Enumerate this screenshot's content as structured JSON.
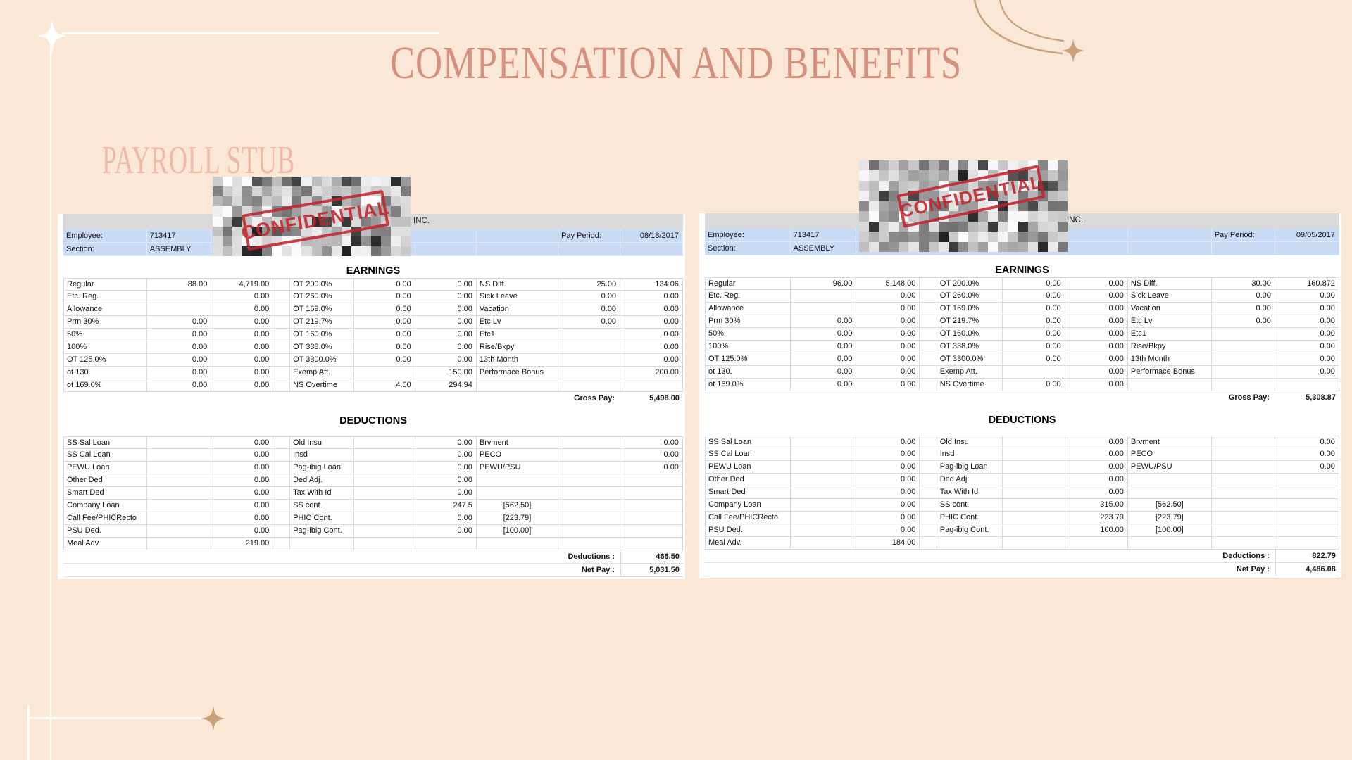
{
  "slide": {
    "title": "COMPENSATION AND BENEFITS",
    "subtitle": "PAYROLL STUB"
  },
  "stamp_label": "CONFIDENTIAL",
  "colors": {
    "background": "#fbe7d6",
    "title_text": "#d6917e",
    "subtitle_text": "#eeb9a6",
    "stamp_red": "#c5242c",
    "accent_tan": "#c9a17b",
    "header_gray": "#d9d9d9",
    "row_blue": "#c9daf5"
  },
  "stubs": [
    {
      "company_suffix": "INC.",
      "employee_label": "Employee:",
      "employee_id": "713417",
      "employee_name_visible": "(",
      "pay_period_label": "Pay Period:",
      "pay_period": "08/18/2017",
      "section_label": "Section:",
      "section": "ASSEMBLY",
      "earnings_title": "EARNINGS",
      "earnings_rows": [
        [
          "Regular",
          "88.00",
          "4,719.00",
          "OT 200.0%",
          "0.00",
          "0.00",
          "NS Diff.",
          "25.00",
          "134.06"
        ],
        [
          "Etc. Reg.",
          "",
          "0.00",
          "OT 260.0%",
          "0.00",
          "0.00",
          "Sick Leave",
          "0.00",
          "0.00"
        ],
        [
          "Allowance",
          "",
          "0.00",
          "OT 169.0%",
          "0.00",
          "0.00",
          "Vacation",
          "0.00",
          "0.00"
        ],
        [
          "Prm 30%",
          "0.00",
          "0.00",
          "OT 219.7%",
          "0.00",
          "0.00",
          "Etc Lv",
          "0.00",
          "0.00"
        ],
        [
          "50%",
          "0.00",
          "0.00",
          "OT 160.0%",
          "0.00",
          "0.00",
          "Etc1",
          "",
          "0.00"
        ],
        [
          "100%",
          "0.00",
          "0.00",
          "OT 338.0%",
          "0.00",
          "0.00",
          "Rise/Bkpy",
          "",
          "0.00"
        ],
        [
          "OT 125.0%",
          "0.00",
          "0.00",
          "OT 3300.0%",
          "0.00",
          "0.00",
          "13th Month",
          "",
          "0.00"
        ],
        [
          "ot 130.",
          "0.00",
          "0.00",
          "Exemp Att.",
          "",
          "150.00",
          "Performace Bonus",
          "",
          "200.00"
        ],
        [
          "ot 169.0%",
          "0.00",
          "0.00",
          "NS Overtime",
          "4.00",
          "294.94",
          "",
          "",
          ""
        ]
      ],
      "gross_pay_label": "Gross Pay:",
      "gross_pay": "5,498.00",
      "deductions_title": "DEDUCTIONS",
      "deduction_rows": [
        [
          "SS Sal Loan",
          "0.00",
          "Old Insu",
          "0.00",
          "",
          "Brvment",
          "0.00"
        ],
        [
          "SS Cal Loan",
          "0.00",
          "Insd",
          "0.00",
          "",
          "PECO",
          "0.00"
        ],
        [
          "PEWU Loan",
          "0.00",
          "Pag-ibig Loan",
          "0.00",
          "",
          "PEWU/PSU",
          "0.00"
        ],
        [
          "Other Ded",
          "0.00",
          "Ded Adj.",
          "0.00",
          "",
          "",
          ""
        ],
        [
          "Smart Ded",
          "0.00",
          "Tax With Id",
          "0.00",
          "",
          "",
          ""
        ],
        [
          "Company Loan",
          "0.00",
          "SS cont.",
          "247.5",
          "[562.50]",
          "",
          ""
        ],
        [
          "Call Fee/PHICRecto",
          "0.00",
          "PHIC Cont.",
          "0.00",
          "[223.79]",
          "",
          ""
        ],
        [
          "PSU Ded.",
          "0.00",
          "Pag-ibig Cont.",
          "0.00",
          "[100.00]",
          "",
          ""
        ],
        [
          "Meal Adv.",
          "219.00",
          "",
          "",
          "",
          "",
          ""
        ]
      ],
      "deductions_total_label": "Deductions :",
      "deductions_total": "466.50",
      "net_pay_label": "Net Pay :",
      "net_pay": "5,031.50"
    },
    {
      "company_suffix": "INC.",
      "employee_label": "Employee:",
      "employee_id": "713417",
      "employee_name_visible": "CA",
      "pay_period_label": "Pay Period:",
      "pay_period": "09/05/2017",
      "section_label": "Section:",
      "section": "ASSEMBLY",
      "earnings_title": "EARNINGS",
      "earnings_rows": [
        [
          "Regular",
          "96.00",
          "5,148.00",
          "OT 200.0%",
          "0.00",
          "0.00",
          "NS Diff.",
          "30.00",
          "160.872"
        ],
        [
          "Etc. Reg.",
          "",
          "0.00",
          "OT 260.0%",
          "0.00",
          "0.00",
          "Sick Leave",
          "0.00",
          "0.00"
        ],
        [
          "Allowance",
          "",
          "0.00",
          "OT 169.0%",
          "0.00",
          "0.00",
          "Vacation",
          "0.00",
          "0.00"
        ],
        [
          "Prm 30%",
          "0.00",
          "0.00",
          "OT 219.7%",
          "0.00",
          "0.00",
          "Etc Lv",
          "0.00",
          "0.00"
        ],
        [
          "50%",
          "0.00",
          "0.00",
          "OT 160.0%",
          "0.00",
          "0.00",
          "Etc1",
          "",
          "0.00"
        ],
        [
          "100%",
          "0.00",
          "0.00",
          "OT 338.0%",
          "0.00",
          "0.00",
          "Rise/Bkpy",
          "",
          "0.00"
        ],
        [
          "OT 125.0%",
          "0.00",
          "0.00",
          "OT 3300.0%",
          "0.00",
          "0.00",
          "13th Month",
          "",
          "0.00"
        ],
        [
          "ot 130.",
          "0.00",
          "0.00",
          "Exemp Att.",
          "",
          "0.00",
          "Performace Bonus",
          "",
          "0.00"
        ],
        [
          "ot 169.0%",
          "0.00",
          "0.00",
          "NS Overtime",
          "0.00",
          "0.00",
          "",
          "",
          ""
        ]
      ],
      "gross_pay_label": "Gross Pay:",
      "gross_pay": "5,308.87",
      "deductions_title": "DEDUCTIONS",
      "deduction_rows": [
        [
          "SS Sal Loan",
          "0.00",
          "Old Insu",
          "0.00",
          "",
          "Brvment",
          "0.00"
        ],
        [
          "SS Cal Loan",
          "0.00",
          "Insd",
          "0.00",
          "",
          "PECO",
          "0.00"
        ],
        [
          "PEWU Loan",
          "0.00",
          "Pag-ibig Loan",
          "0.00",
          "",
          "PEWU/PSU",
          "0.00"
        ],
        [
          "Other Ded",
          "0.00",
          "Ded Adj.",
          "0.00",
          "",
          "",
          ""
        ],
        [
          "Smart Ded",
          "0.00",
          "Tax With Id",
          "0.00",
          "",
          "",
          ""
        ],
        [
          "Company Loan",
          "0.00",
          "SS cont.",
          "315.00",
          "[562.50]",
          "",
          ""
        ],
        [
          "Call Fee/PHICRecto",
          "0.00",
          "PHIC Cont.",
          "223.79",
          "[223.79]",
          "",
          ""
        ],
        [
          "PSU Ded.",
          "0.00",
          "Pag-ibig Cont.",
          "100.00",
          "[100.00]",
          "",
          ""
        ],
        [
          "Meal Adv.",
          "184.00",
          "",
          "",
          "",
          "",
          ""
        ]
      ],
      "deductions_total_label": "Deductions :",
      "deductions_total": "822.79",
      "net_pay_label": "Net Pay :",
      "net_pay": "4,486.08"
    }
  ]
}
